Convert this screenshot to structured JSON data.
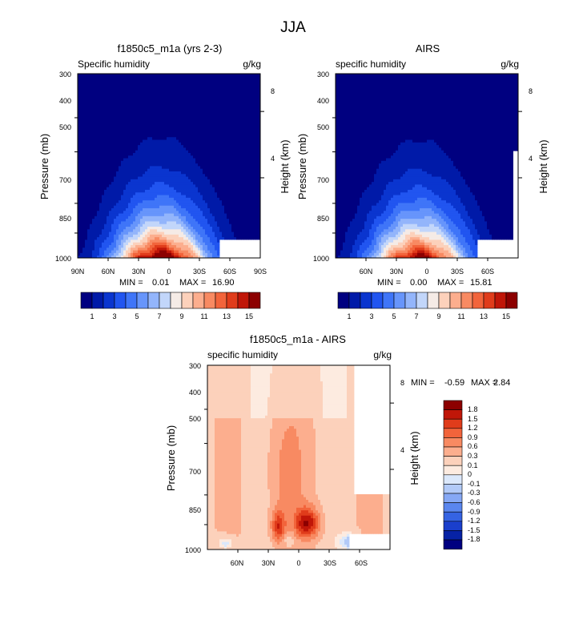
{
  "figure": {
    "title": "JJA"
  },
  "chart_data": [
    {
      "type": "heatmap",
      "title": "f1850c5_m1a (yrs 2-3)",
      "subtitle_left": "Specific humidity",
      "subtitle_right": "g/kg",
      "ylabel": "Pressure (mb)",
      "ylabel_right": "Height (km)",
      "x_ticks": [
        "90N",
        "60N",
        "30N",
        "0",
        "30S",
        "60S",
        "90S"
      ],
      "y_ticks": [
        "300",
        "400",
        "500",
        "700",
        "850",
        "1000"
      ],
      "height_ticks": [
        "8",
        "4"
      ],
      "ylim": [
        1000,
        300
      ],
      "min_label": "MIN =",
      "min_value": "0.01",
      "max_label": "MAX =",
      "max_value": "16.90",
      "peak_value": 16.9,
      "colorbar_labels": [
        "1",
        "3",
        "5",
        "7",
        "9",
        "11",
        "13",
        "15"
      ]
    },
    {
      "type": "heatmap",
      "title": "AIRS",
      "subtitle_left": "specific humidity",
      "subtitle_right": "g/kg",
      "ylabel": "Pressure (mb)",
      "ylabel_right": "Height (km)",
      "x_ticks": [
        "60N",
        "30N",
        "0",
        "30S",
        "60S"
      ],
      "y_ticks": [
        "300",
        "400",
        "500",
        "700",
        "850",
        "1000"
      ],
      "height_ticks": [
        "8",
        "4"
      ],
      "ylim": [
        1000,
        300
      ],
      "min_label": "MIN =",
      "min_value": "0.00",
      "max_label": "MAX =",
      "max_value": "15.81",
      "peak_value": 15.81,
      "colorbar_labels": [
        "1",
        "3",
        "5",
        "7",
        "9",
        "11",
        "13",
        "15"
      ]
    },
    {
      "type": "heatmap",
      "title": "f1850c5_m1a - AIRS",
      "subtitle_left": "specific humidity",
      "subtitle_right": "g/kg",
      "ylabel": "Pressure (mb)",
      "ylabel_right": "Height (km)",
      "x_ticks": [
        "60N",
        "30N",
        "0",
        "30S",
        "60S"
      ],
      "y_ticks": [
        "300",
        "400",
        "500",
        "700",
        "850",
        "1000"
      ],
      "height_ticks": [
        "8",
        "4"
      ],
      "ylim": [
        1000,
        300
      ],
      "min_label": "MIN =",
      "min_value": "-0.59",
      "max_label": "MAX =",
      "max_value": "2.84",
      "colorbar_labels": [
        "1.8",
        "1.5",
        "1.2",
        "0.9",
        "0.6",
        "0.3",
        "0.1",
        "0",
        "-0.1",
        "-0.3",
        "-0.6",
        "-0.9",
        "-1.2",
        "-1.5",
        "-1.8"
      ]
    }
  ],
  "palettes": {
    "abs": [
      "#000080",
      "#001aa8",
      "#0a35cf",
      "#2155f0",
      "#3f75f8",
      "#6795fb",
      "#93b5fb",
      "#c2d6fa",
      "#f5ebe6",
      "#fcd1bb",
      "#fcae8e",
      "#f88a62",
      "#f2643b",
      "#e03c1b",
      "#c01608",
      "#8c0000"
    ],
    "diff": [
      "#8c0000",
      "#c01608",
      "#e03c1b",
      "#f2643b",
      "#f88a62",
      "#fcae8e",
      "#fcd1bb",
      "#fdebe0",
      "#dbe8fb",
      "#b2caf8",
      "#86a8f5",
      "#5a86ef",
      "#3563e3",
      "#1a3fcc",
      "#0622a5",
      "#000080"
    ]
  }
}
